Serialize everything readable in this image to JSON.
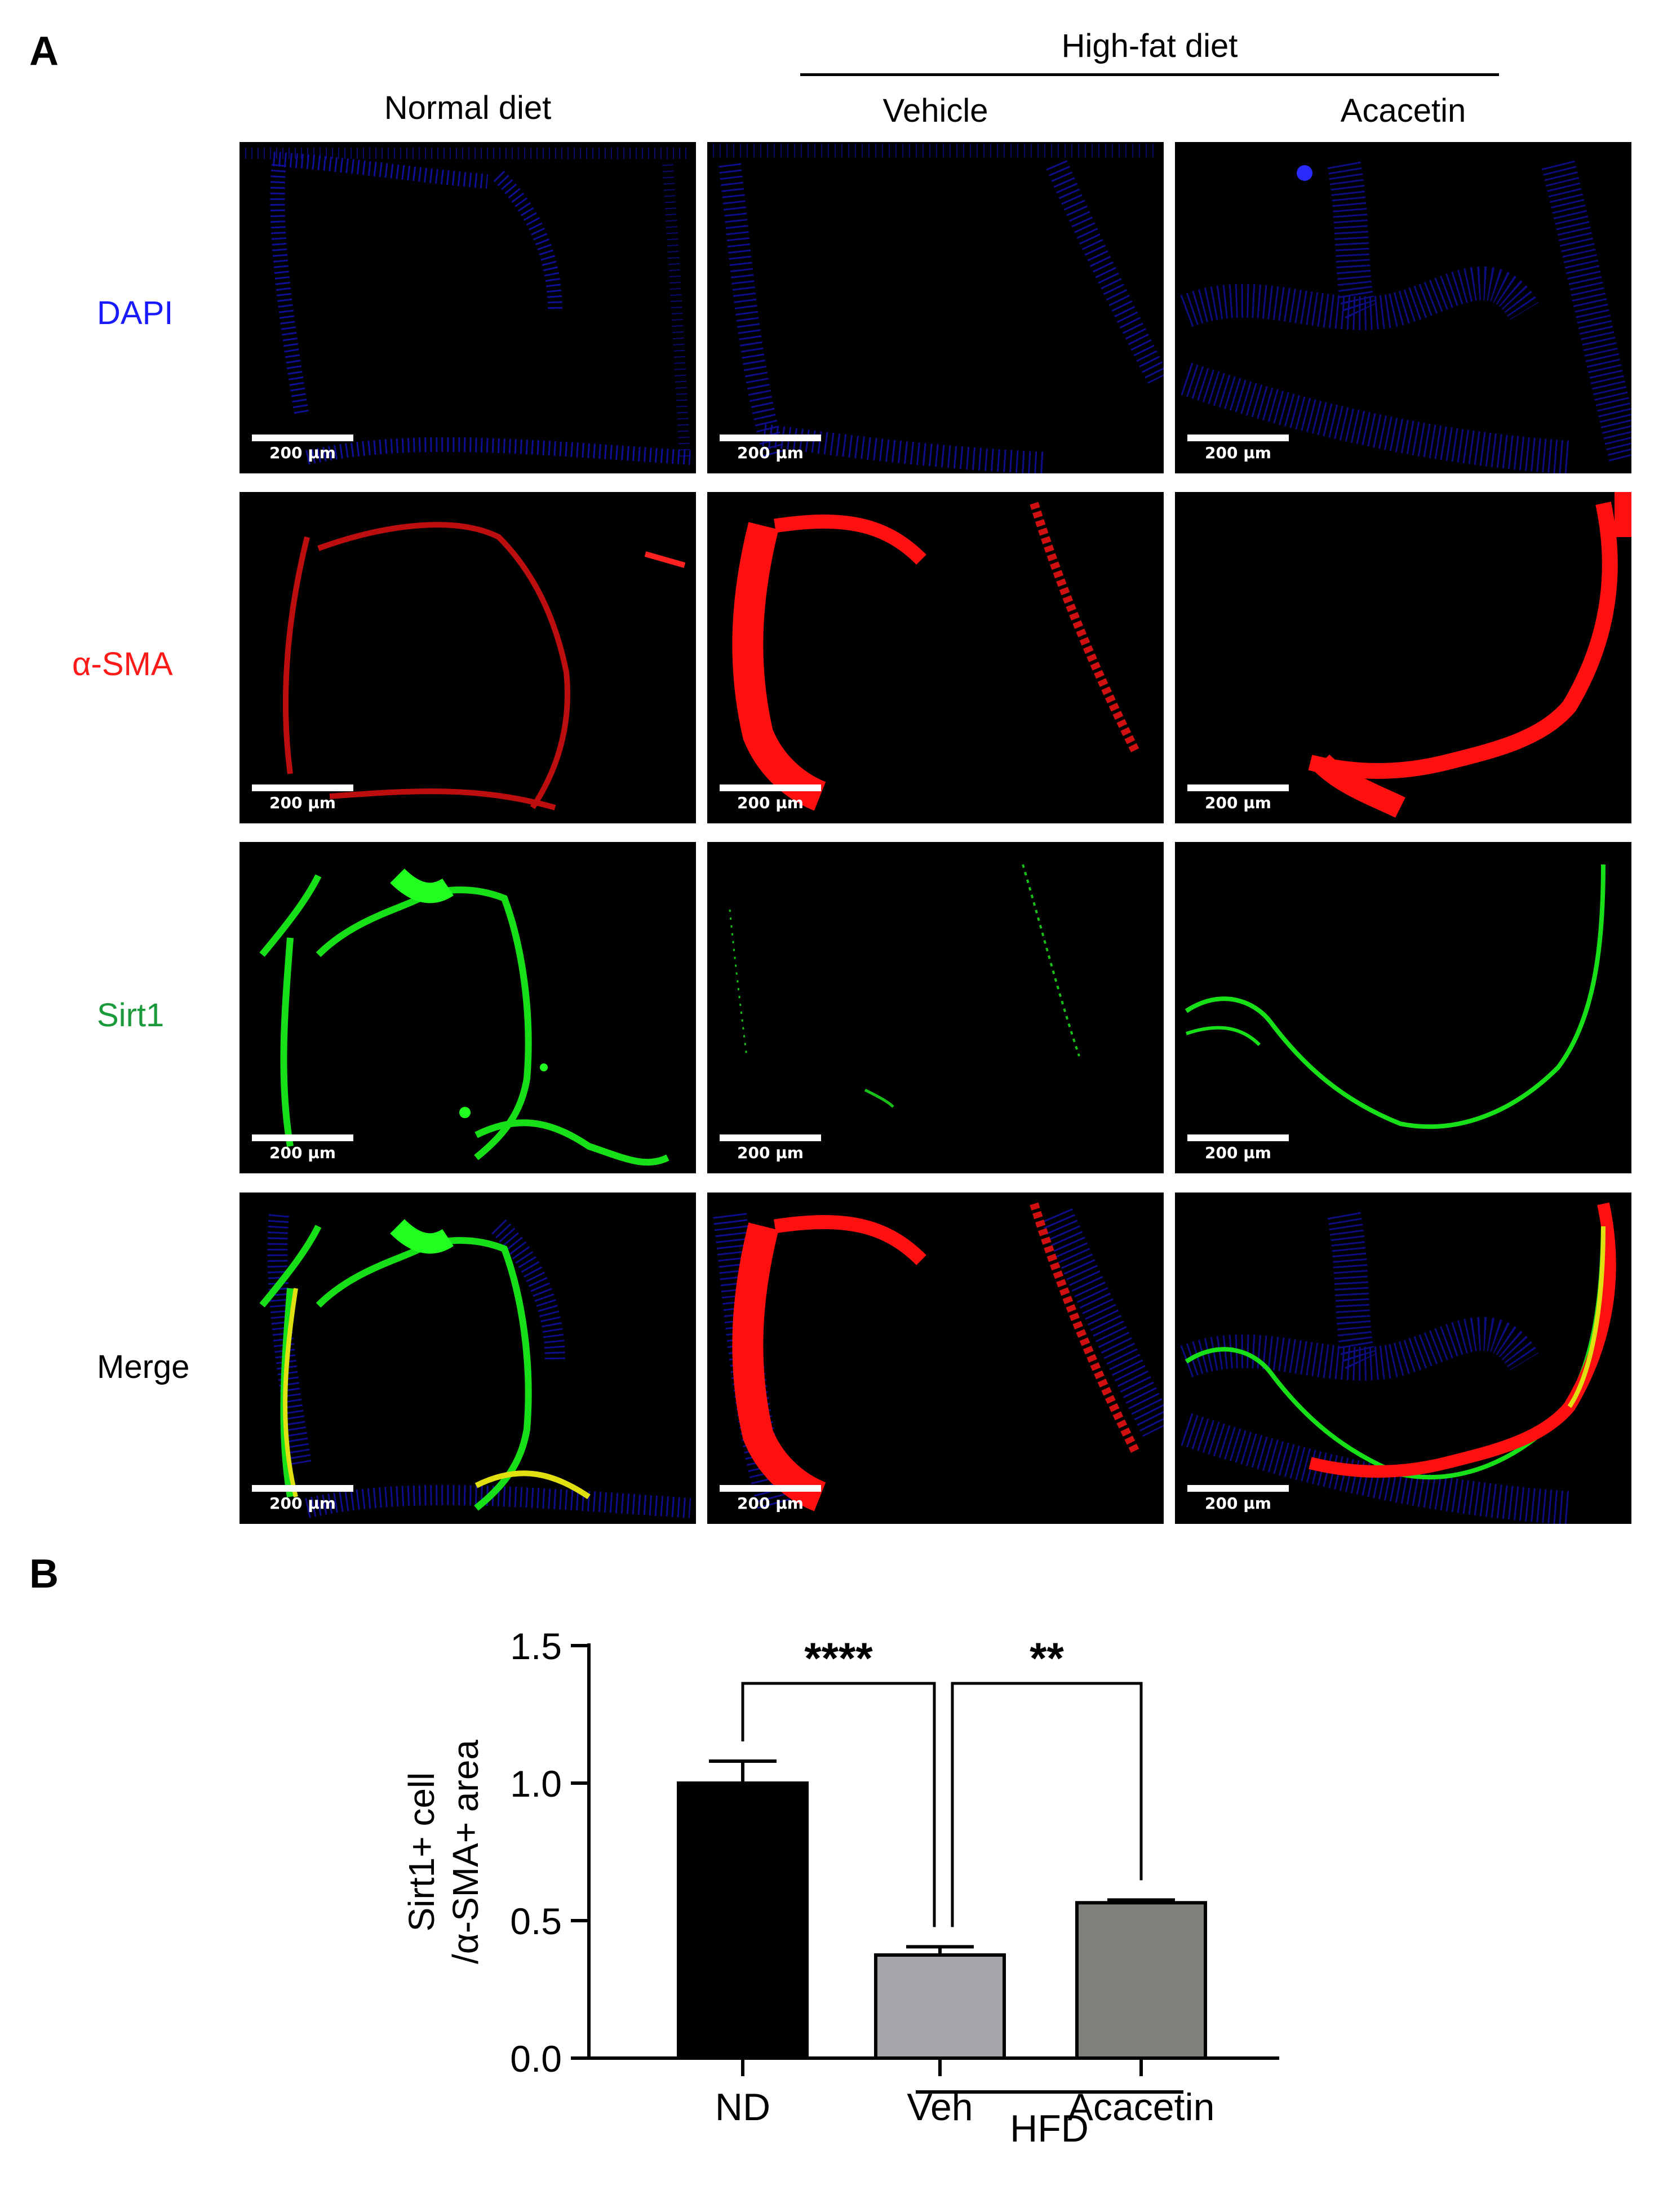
{
  "panel_a": {
    "letter": "A",
    "group_header": "High-fat diet",
    "columns": [
      "Normal diet",
      "Vehicle",
      "Acacetin"
    ],
    "rows": [
      {
        "label": "DAPI",
        "color": "#1a1aff"
      },
      {
        "label": "α-SMA",
        "color": "#ff1a1a"
      },
      {
        "label": "Sirt1",
        "color": "#1a9a3a"
      },
      {
        "label": "Merge",
        "color": "#000000"
      }
    ],
    "scalebar_label": "200 μm"
  },
  "panel_b": {
    "letter": "B",
    "group_label": "HFD"
  },
  "chart_data": {
    "type": "bar",
    "categories": [
      "ND",
      "Veh",
      "Acacetin"
    ],
    "values": [
      1.0,
      0.375,
      0.565
    ],
    "errors": [
      0.08,
      0.03,
      0.01
    ],
    "bar_colors": [
      "#000000",
      "#a6a6aa",
      "#7f7f7c"
    ],
    "ylabel_line1": "Sirt1+ cell",
    "ylabel_line2": "/α-SMA+ area",
    "ylim": [
      0,
      1.5
    ],
    "yticks": [
      "0.0",
      "0.5",
      "1.0",
      "1.5"
    ],
    "significance": [
      {
        "from": "ND",
        "to": "Veh",
        "label": "****"
      },
      {
        "from": "Veh",
        "to": "Acacetin",
        "label": "**"
      }
    ],
    "grid": false
  }
}
